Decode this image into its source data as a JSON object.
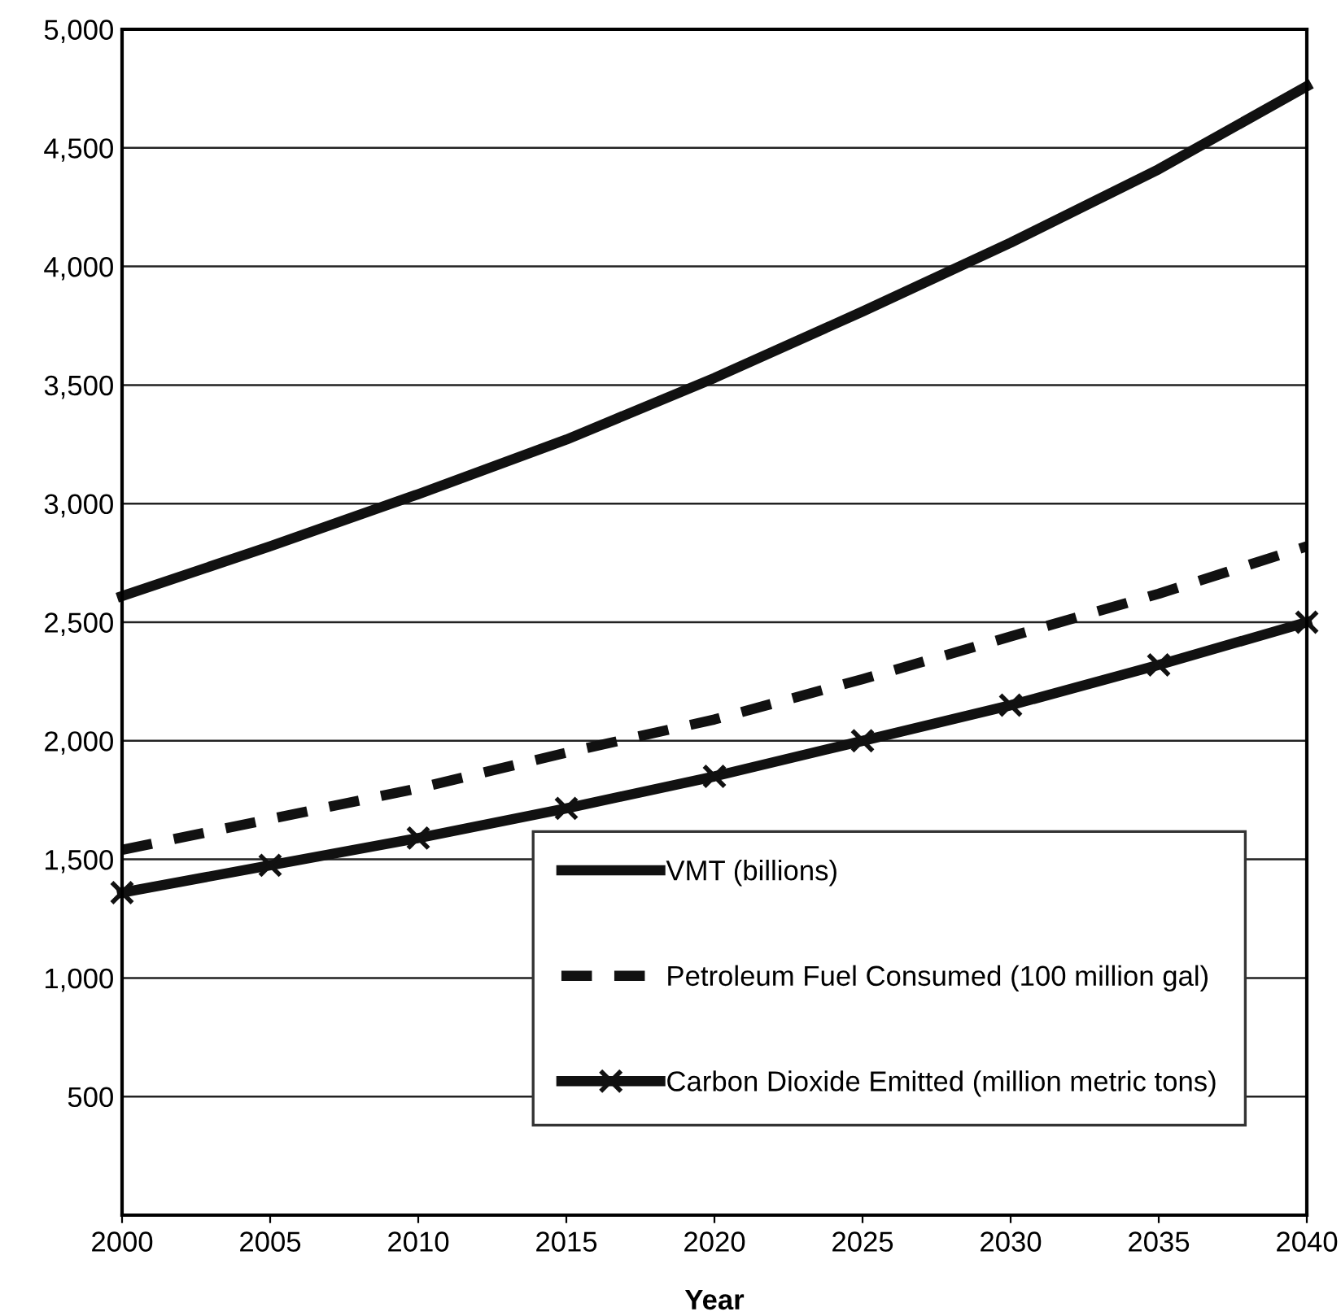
{
  "chart_data": {
    "type": "line",
    "xlabel": "Year",
    "x": [
      2000,
      2005,
      2010,
      2015,
      2020,
      2025,
      2030,
      2035,
      2040
    ],
    "series": [
      {
        "name": "VMT (billions)",
        "color": "#111111",
        "values": [
          2610,
          2820,
          3040,
          3270,
          3530,
          3810,
          4100,
          4410,
          4760
        ],
        "line_style": "solid",
        "marker": "none"
      },
      {
        "name": "Petroleum Fuel Consumed (100 million gal)",
        "color": "#111111",
        "values": [
          1540,
          1670,
          1800,
          1950,
          2090,
          2260,
          2440,
          2620,
          2820
        ],
        "line_style": "dashed",
        "marker": "none"
      },
      {
        "name": "Carbon Dioxide Emitted (million metric tons)",
        "color": "#111111",
        "values": [
          1360,
          1475,
          1590,
          1715,
          1850,
          2000,
          2150,
          2320,
          2500
        ],
        "line_style": "solid",
        "marker": "cross"
      }
    ],
    "xlim": [
      2000,
      2040
    ],
    "xticks": [
      2000,
      2005,
      2010,
      2015,
      2020,
      2025,
      2030,
      2035,
      2040
    ],
    "ylim": [
      0,
      5000
    ],
    "yticks": [
      {
        "value": 500,
        "label": "500"
      },
      {
        "value": 1000,
        "label": "1,000"
      },
      {
        "value": 1500,
        "label": "1,500"
      },
      {
        "value": 2000,
        "label": "2,000"
      },
      {
        "value": 2500,
        "label": "2,500"
      },
      {
        "value": 3000,
        "label": "3,000"
      },
      {
        "value": 3500,
        "label": "3,500"
      },
      {
        "value": 4000,
        "label": "4,000"
      },
      {
        "value": 4500,
        "label": "4,500"
      },
      {
        "value": 5000,
        "label": "5,000"
      }
    ],
    "grid": "y",
    "legend": "bottom right"
  }
}
